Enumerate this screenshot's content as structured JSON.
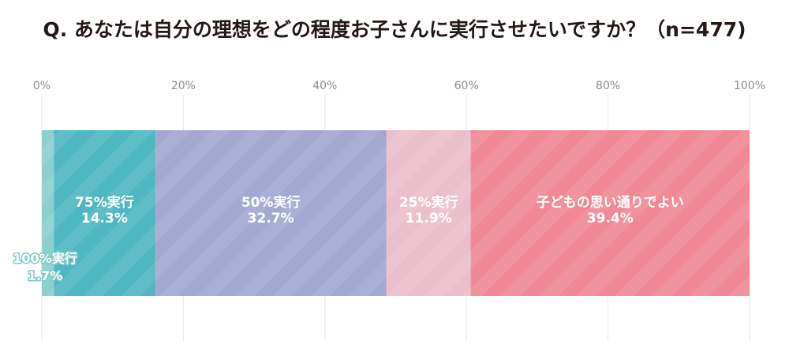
{
  "chart_data": {
    "type": "bar",
    "orientation": "horizontal",
    "stacked": true,
    "title": "Q. あなたは自分の理想をどの程度お子さんに実行させたいですか？（n=477)",
    "x_ticks": [
      "0%",
      "20%",
      "40%",
      "60%",
      "80%",
      "100%"
    ],
    "xlim": [
      0,
      100
    ],
    "grid": true,
    "series": [
      {
        "name": "100%実行",
        "value": 1.7,
        "value_label": "1.7%",
        "color": "#8ccfcd"
      },
      {
        "name": "75%実行",
        "value": 14.3,
        "value_label": "14.3%",
        "color": "#4fb7c1"
      },
      {
        "name": "50%実行",
        "value": 32.7,
        "value_label": "32.7%",
        "color": "#a2a8d0"
      },
      {
        "name": "25%実行",
        "value": 11.9,
        "value_label": "11.9%",
        "color": "#eabfcb"
      },
      {
        "name": "子どもの思い通りでよい",
        "value": 39.4,
        "value_label": "39.4%",
        "color": "#f08895"
      }
    ]
  }
}
